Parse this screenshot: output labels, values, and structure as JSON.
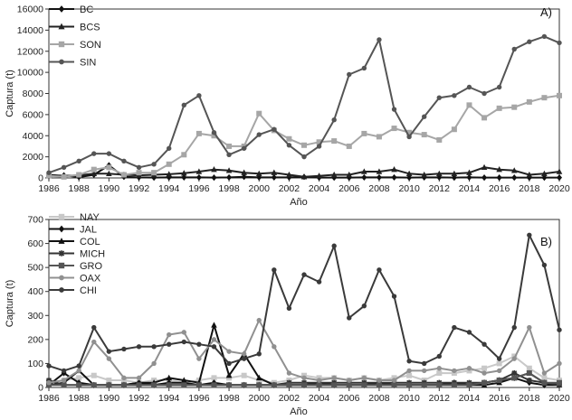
{
  "chart_data": [
    {
      "type": "line",
      "panel_label": "A)",
      "xlabel": "Año",
      "ylabel": "Captura (t)",
      "xlim": [
        1986,
        2020
      ],
      "ylim": [
        0,
        16000
      ],
      "x_ticks": [
        1986,
        1988,
        1990,
        1992,
        1994,
        1996,
        1998,
        2000,
        2002,
        2004,
        2006,
        2008,
        2010,
        2012,
        2014,
        2016,
        2018,
        2020
      ],
      "y_ticks": [
        0,
        2000,
        4000,
        6000,
        8000,
        10000,
        12000,
        14000,
        16000
      ],
      "legend_position": "top-left",
      "grid": false,
      "x": [
        1986,
        1987,
        1988,
        1989,
        1990,
        1991,
        1992,
        1993,
        1994,
        1995,
        1996,
        1997,
        1998,
        1999,
        2000,
        2001,
        2002,
        2003,
        2004,
        2005,
        2006,
        2007,
        2008,
        2009,
        2010,
        2011,
        2012,
        2013,
        2014,
        2015,
        2016,
        2017,
        2018,
        2019,
        2020
      ],
      "series": [
        {
          "name": "BC",
          "color": "#111111",
          "marker": "diamond",
          "values": [
            150,
            250,
            80,
            300,
            1200,
            100,
            50,
            30,
            50,
            50,
            50,
            30,
            50,
            100,
            50,
            50,
            50,
            100,
            30,
            30,
            30,
            50,
            50,
            50,
            30,
            50,
            50,
            30,
            50,
            30,
            30,
            30,
            30,
            30,
            30
          ]
        },
        {
          "name": "BCS",
          "color": "#222222",
          "marker": "triangle",
          "values": [
            300,
            200,
            250,
            400,
            400,
            300,
            250,
            300,
            350,
            450,
            600,
            800,
            700,
            500,
            400,
            500,
            300,
            100,
            200,
            300,
            300,
            600,
            600,
            800,
            400,
            300,
            400,
            400,
            500,
            1000,
            800,
            700,
            300,
            400,
            600
          ]
        },
        {
          "name": "SON",
          "color": "#a6a6a6",
          "marker": "square",
          "values": [
            200,
            100,
            300,
            800,
            1000,
            300,
            500,
            500,
            1300,
            2200,
            4200,
            4000,
            3000,
            3000,
            6100,
            4500,
            3700,
            3100,
            3400,
            3500,
            3000,
            4200,
            3900,
            4700,
            4300,
            4100,
            3600,
            4600,
            6900,
            5700,
            6600,
            6700,
            7200,
            7600,
            7800
          ]
        },
        {
          "name": "SIN",
          "color": "#555555",
          "marker": "circle",
          "values": [
            500,
            1000,
            1600,
            2300,
            2300,
            1600,
            1000,
            1300,
            2800,
            6900,
            7800,
            4300,
            2200,
            2800,
            4100,
            4600,
            3100,
            2000,
            3000,
            5500,
            9800,
            10400,
            13100,
            6500,
            3900,
            5800,
            7600,
            7800,
            8600,
            8000,
            8600,
            12200,
            12900,
            13400,
            12800
          ]
        }
      ]
    },
    {
      "type": "line",
      "panel_label": "B)",
      "xlabel": "Año",
      "ylabel": "Captura (t)",
      "xlim": [
        1986,
        2020
      ],
      "ylim": [
        0,
        700
      ],
      "x_ticks": [
        1986,
        1988,
        1990,
        1992,
        1994,
        1996,
        1998,
        2000,
        2002,
        2004,
        2006,
        2008,
        2010,
        2012,
        2014,
        2016,
        2018,
        2020
      ],
      "y_ticks": [
        0,
        100,
        200,
        300,
        400,
        500,
        600,
        700
      ],
      "legend_position": "top-left",
      "grid": false,
      "x": [
        1986,
        1987,
        1988,
        1989,
        1990,
        1991,
        1992,
        1993,
        1994,
        1995,
        1996,
        1997,
        1998,
        1999,
        2000,
        2001,
        2002,
        2003,
        2004,
        2005,
        2006,
        2007,
        2008,
        2009,
        2010,
        2011,
        2012,
        2013,
        2014,
        2015,
        2016,
        2017,
        2018,
        2019,
        2020
      ],
      "series": [
        {
          "name": "NAY",
          "color": "#c8c8c8",
          "marker": "square",
          "values": [
            20,
            30,
            40,
            50,
            30,
            30,
            20,
            30,
            30,
            20,
            30,
            40,
            40,
            50,
            30,
            20,
            30,
            50,
            40,
            40,
            30,
            40,
            30,
            40,
            50,
            30,
            60,
            60,
            70,
            80,
            100,
            130,
            80,
            40,
            30
          ]
        },
        {
          "name": "JAL",
          "color": "#111111",
          "marker": "diamond",
          "values": [
            10,
            60,
            20,
            10,
            10,
            10,
            20,
            10,
            20,
            20,
            10,
            20,
            10,
            10,
            10,
            10,
            10,
            10,
            20,
            10,
            10,
            10,
            20,
            10,
            10,
            10,
            10,
            20,
            10,
            20,
            30,
            40,
            20,
            10,
            10
          ]
        },
        {
          "name": "COL",
          "color": "#111111",
          "marker": "triangle",
          "values": [
            10,
            20,
            70,
            10,
            10,
            10,
            20,
            20,
            40,
            30,
            20,
            260,
            50,
            140,
            40,
            10,
            10,
            10,
            10,
            10,
            10,
            10,
            10,
            10,
            10,
            10,
            10,
            10,
            10,
            10,
            20,
            40,
            60,
            20,
            10
          ]
        },
        {
          "name": "MICH",
          "color": "#333333",
          "marker": "star",
          "values": [
            30,
            10,
            10,
            10,
            10,
            10,
            10,
            10,
            10,
            10,
            10,
            10,
            10,
            10,
            10,
            10,
            20,
            20,
            20,
            20,
            20,
            20,
            20,
            20,
            20,
            20,
            20,
            20,
            20,
            20,
            30,
            60,
            30,
            20,
            10
          ]
        },
        {
          "name": "GRO",
          "color": "#555555",
          "marker": "square",
          "values": [
            10,
            10,
            10,
            10,
            10,
            10,
            10,
            10,
            10,
            10,
            10,
            10,
            10,
            10,
            10,
            10,
            10,
            10,
            10,
            10,
            10,
            10,
            10,
            10,
            10,
            10,
            10,
            10,
            10,
            20,
            30,
            40,
            60,
            20,
            20
          ]
        },
        {
          "name": "OAX",
          "color": "#909090",
          "marker": "circle",
          "values": [
            20,
            30,
            70,
            190,
            120,
            40,
            40,
            100,
            220,
            230,
            120,
            200,
            150,
            140,
            280,
            170,
            60,
            40,
            30,
            40,
            30,
            40,
            30,
            30,
            70,
            70,
            80,
            70,
            80,
            60,
            70,
            120,
            250,
            60,
            100
          ]
        },
        {
          "name": "CHI",
          "color": "#3a3a3a",
          "marker": "circle",
          "values": [
            90,
            70,
            90,
            250,
            150,
            160,
            170,
            170,
            180,
            190,
            180,
            170,
            100,
            120,
            140,
            490,
            330,
            470,
            440,
            590,
            290,
            340,
            490,
            380,
            110,
            100,
            130,
            250,
            230,
            180,
            120,
            250,
            635,
            510,
            240
          ]
        }
      ]
    }
  ]
}
